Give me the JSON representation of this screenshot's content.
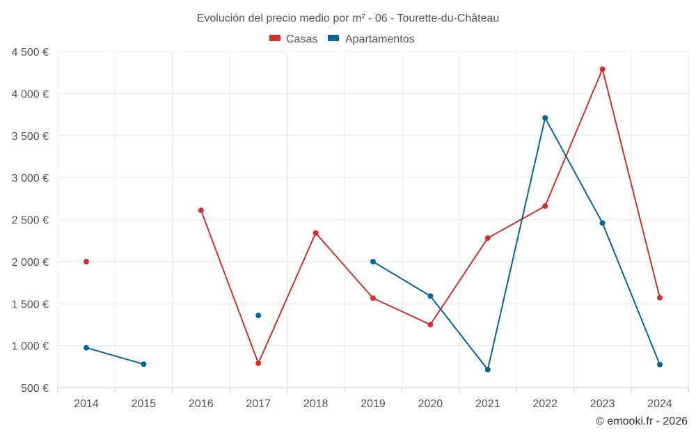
{
  "chart_data": {
    "type": "line",
    "title": "Evolución del precio medio por m² - 06 - Tourette-du-Château",
    "x": [
      "2014",
      "2015",
      "2016",
      "2017",
      "2018",
      "2019",
      "2020",
      "2021",
      "2022",
      "2023",
      "2024"
    ],
    "ylim": [
      500,
      4500
    ],
    "yticks": [
      500,
      1000,
      1500,
      2000,
      2500,
      3000,
      3500,
      4000,
      4500
    ],
    "ytick_labels": [
      "500 €",
      "1 000 €",
      "1 500 €",
      "2 000 €",
      "2 500 €",
      "3 000 €",
      "3 500 €",
      "4 000 €",
      "4 500 €"
    ],
    "grid": true,
    "legend_position": "top-center",
    "series": [
      {
        "name": "Casas",
        "color": "#d32f2f",
        "values": [
          2000,
          null,
          2610,
          790,
          2340,
          1565,
          1250,
          2280,
          2660,
          4290,
          1570
        ]
      },
      {
        "name": "Apartamentos",
        "color": "#03669b",
        "values": [
          975,
          780,
          null,
          1360,
          null,
          2000,
          1590,
          715,
          3710,
          2460,
          775
        ]
      }
    ]
  },
  "credit": "© emooki.fr - 2026"
}
